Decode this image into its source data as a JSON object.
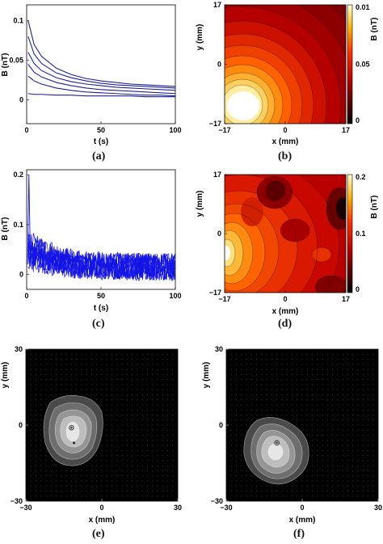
{
  "figure": {
    "panels": [
      {
        "id": "a",
        "label": "(a)"
      },
      {
        "id": "b",
        "label": "(b)"
      },
      {
        "id": "c",
        "label": "(c)"
      },
      {
        "id": "d",
        "label": "(d)"
      },
      {
        "id": "e",
        "label": "(e)"
      },
      {
        "id": "f",
        "label": "(f)"
      }
    ]
  },
  "chart_data": [
    {
      "panel": "a",
      "type": "line",
      "xlabel": "t (s)",
      "ylabel": "B (nT)",
      "xlim": [
        0,
        100
      ],
      "ylim": [
        -0.03,
        0.12
      ],
      "xticks": [
        "0",
        "50",
        "100"
      ],
      "yticks": [
        "0",
        "0.05",
        "0.1"
      ],
      "series_color": "#2a2acc",
      "series": [
        {
          "x": [
            1,
            5,
            10,
            20,
            30,
            40,
            50,
            60,
            70,
            80,
            90,
            100
          ],
          "values": [
            0.1,
            0.07,
            0.055,
            0.04,
            0.032,
            0.027,
            0.024,
            0.022,
            0.02,
            0.019,
            0.018,
            0.017
          ]
        },
        {
          "x": [
            1,
            5,
            10,
            20,
            30,
            40,
            50,
            60,
            70,
            80,
            90,
            100
          ],
          "values": [
            0.08,
            0.058,
            0.046,
            0.034,
            0.028,
            0.024,
            0.021,
            0.019,
            0.018,
            0.017,
            0.016,
            0.015
          ]
        },
        {
          "x": [
            1,
            5,
            10,
            20,
            30,
            40,
            50,
            60,
            70,
            80,
            90,
            100
          ],
          "values": [
            0.06,
            0.046,
            0.037,
            0.028,
            0.023,
            0.02,
            0.018,
            0.016,
            0.015,
            0.014,
            0.013,
            0.012
          ]
        },
        {
          "x": [
            1,
            5,
            10,
            20,
            30,
            40,
            50,
            60,
            70,
            80,
            90,
            100
          ],
          "values": [
            0.045,
            0.035,
            0.029,
            0.022,
            0.018,
            0.015,
            0.013,
            0.012,
            0.011,
            0.01,
            0.009,
            0.008
          ]
        },
        {
          "x": [
            1,
            5,
            10,
            20,
            30,
            40,
            50,
            60,
            70,
            80,
            90,
            100
          ],
          "values": [
            0.03,
            0.024,
            0.02,
            0.015,
            0.012,
            0.01,
            0.009,
            0.008,
            0.007,
            0.006,
            0.006,
            0.005
          ]
        },
        {
          "x": [
            1,
            5,
            10,
            20,
            30,
            40,
            50,
            60,
            70,
            80,
            90,
            100
          ],
          "values": [
            0.008,
            0.007,
            0.007,
            0.006,
            0.006,
            0.005,
            0.005,
            0.005,
            0.005,
            0.004,
            0.004,
            0.004
          ]
        }
      ]
    },
    {
      "panel": "b",
      "type": "heatmap",
      "xlabel": "x (mm)",
      "ylabel": "y (mm)",
      "colorbar_label": "B (nT)",
      "xlim": [
        -17,
        17
      ],
      "ylim": [
        -17,
        17
      ],
      "xticks": [
        "−17",
        "0",
        "17"
      ],
      "yticks": [
        "−17",
        "0",
        "17"
      ],
      "colorbar_ticks": [
        "0.01",
        "0.05",
        "0"
      ],
      "colormap": "hot",
      "peak": {
        "x": -12,
        "y": -12
      }
    },
    {
      "panel": "c",
      "type": "line",
      "xlabel": "t (s)",
      "ylabel": "B (nT)",
      "xlim": [
        0,
        100
      ],
      "ylim": [
        -0.03,
        0.21
      ],
      "xticks": [
        "0",
        "50",
        "100"
      ],
      "yticks": [
        "0",
        "0.1",
        "0.2"
      ],
      "series_color": "#1414e6",
      "series_count": 12,
      "spike": {
        "x": 1.5,
        "value": 0.2
      }
    },
    {
      "panel": "d",
      "type": "heatmap",
      "xlabel": "x (mm)",
      "ylabel": "y (mm)",
      "colorbar_label": "B (nT)",
      "xlim": [
        -17,
        17
      ],
      "ylim": [
        -17,
        17
      ],
      "xticks": [
        "−17",
        "0",
        "17"
      ],
      "yticks": [
        "−17",
        "0",
        "17"
      ],
      "colorbar_ticks": [
        "0.2",
        "0.1",
        "0"
      ],
      "colormap": "hot",
      "peak": {
        "x": -15,
        "y": -2
      }
    },
    {
      "panel": "e",
      "type": "heatmap",
      "xlabel": "x (mm)",
      "ylabel": "y (mm)",
      "xlim": [
        -30,
        30
      ],
      "ylim": [
        -30,
        30
      ],
      "xticks": [
        "−30",
        "0",
        "30"
      ],
      "yticks": [
        "−30",
        "0",
        "30"
      ],
      "colormap": "gray",
      "blob_center": {
        "x": -12,
        "y": 0
      },
      "marks": [
        {
          "x": -12,
          "y": -1,
          "style": "circle"
        },
        {
          "x": -11,
          "y": -7,
          "style": "dot"
        }
      ]
    },
    {
      "panel": "f",
      "type": "heatmap",
      "xlabel": "x (mm)",
      "ylabel": "y (mm)",
      "xlim": [
        -30,
        30
      ],
      "ylim": [
        -30,
        30
      ],
      "xticks": [
        "−30",
        "0",
        "30"
      ],
      "yticks": [
        "−30",
        "0",
        "30"
      ],
      "colormap": "gray",
      "blob_center": {
        "x": -10,
        "y": -6
      },
      "marks": [
        {
          "x": -10,
          "y": -7,
          "style": "circle"
        }
      ]
    }
  ]
}
